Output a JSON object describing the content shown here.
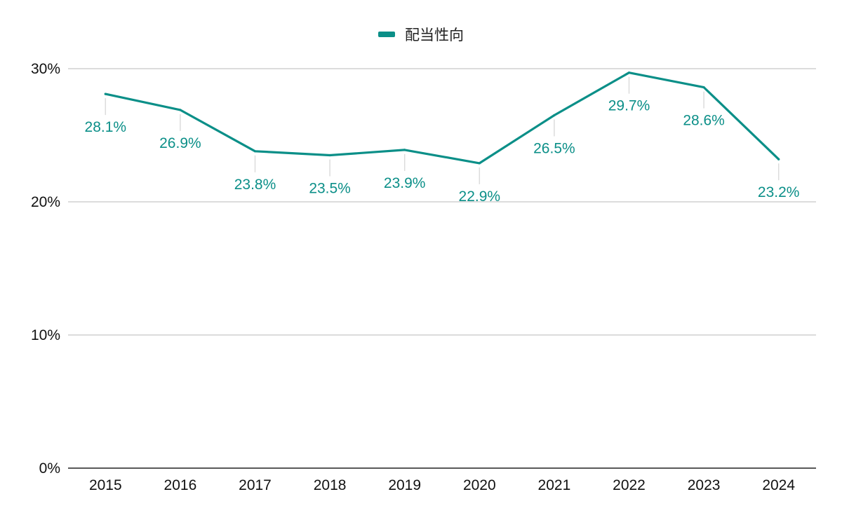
{
  "chart_data": {
    "type": "line",
    "categories": [
      "2015",
      "2016",
      "2017",
      "2018",
      "2019",
      "2020",
      "2021",
      "2022",
      "2023",
      "2024"
    ],
    "series": [
      {
        "name": "配当性向",
        "values": [
          28.1,
          26.9,
          23.8,
          23.5,
          23.9,
          22.9,
          26.5,
          29.7,
          28.6,
          23.2
        ],
        "labels": [
          "28.1%",
          "26.9%",
          "23.8%",
          "23.5%",
          "23.9%",
          "22.9%",
          "26.5%",
          "29.7%",
          "28.6%",
          "23.2%"
        ],
        "color": "#0b8f88"
      }
    ],
    "ylim": [
      0,
      30
    ],
    "yticks": [
      0,
      10,
      20,
      30
    ],
    "ytick_labels": [
      "0%",
      "10%",
      "20%",
      "30%"
    ],
    "grid": true,
    "legend_position": "top-center",
    "title": "",
    "xlabel": "",
    "ylabel": ""
  }
}
